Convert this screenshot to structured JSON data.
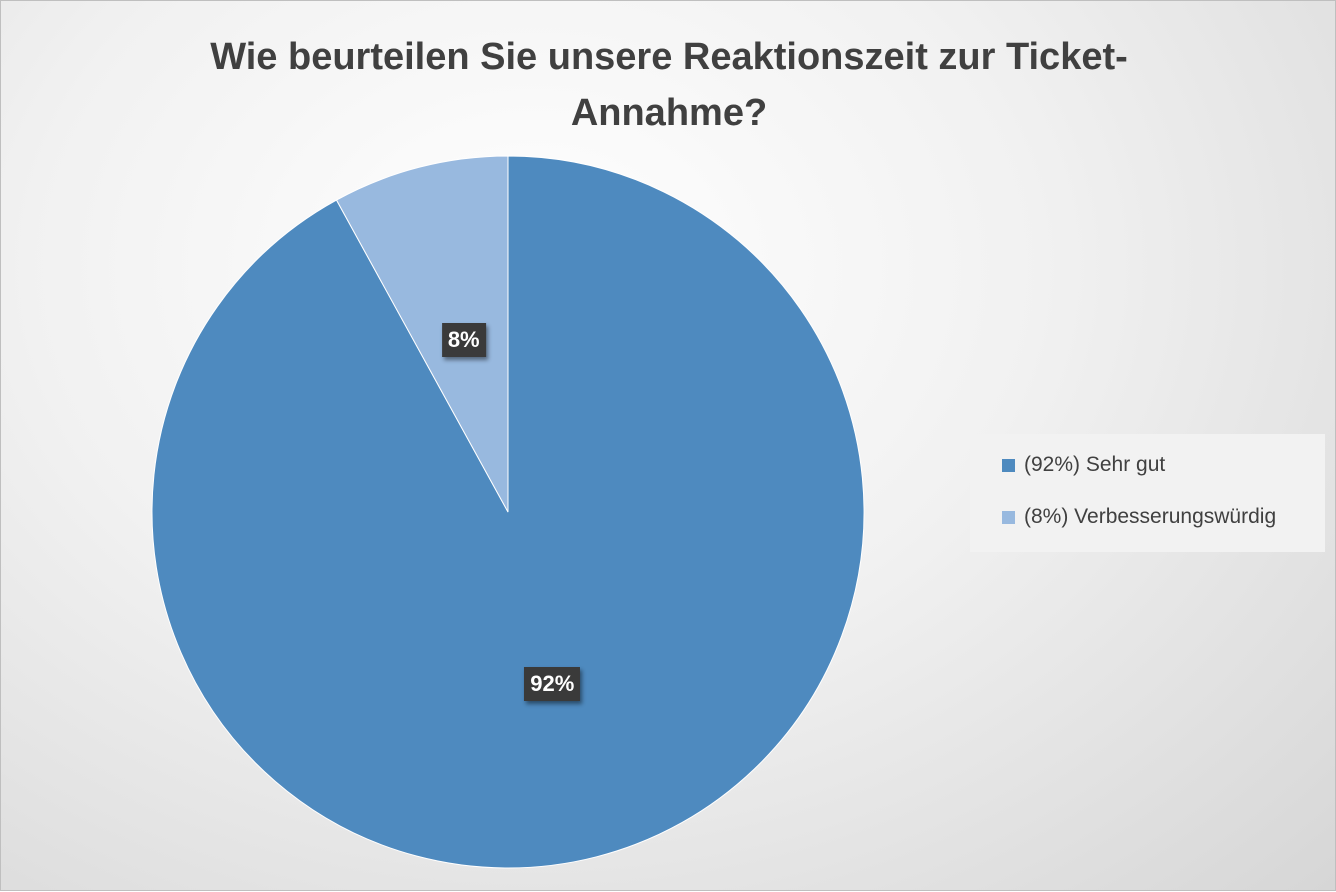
{
  "chart_data": {
    "type": "pie",
    "title": "Wie beurteilen Sie unsere Reaktionszeit zur Ticket-Annahme?",
    "categories": [
      "(92%) Sehr gut",
      "(8%) Verbesserungswürdig"
    ],
    "values": [
      92,
      8
    ],
    "data_labels": [
      "92%",
      "8%"
    ],
    "colors": [
      "#4e8abf",
      "#98b9df"
    ],
    "start_angle_deg": 0,
    "direction": "clockwise",
    "legend_position": "right",
    "grid": false
  }
}
